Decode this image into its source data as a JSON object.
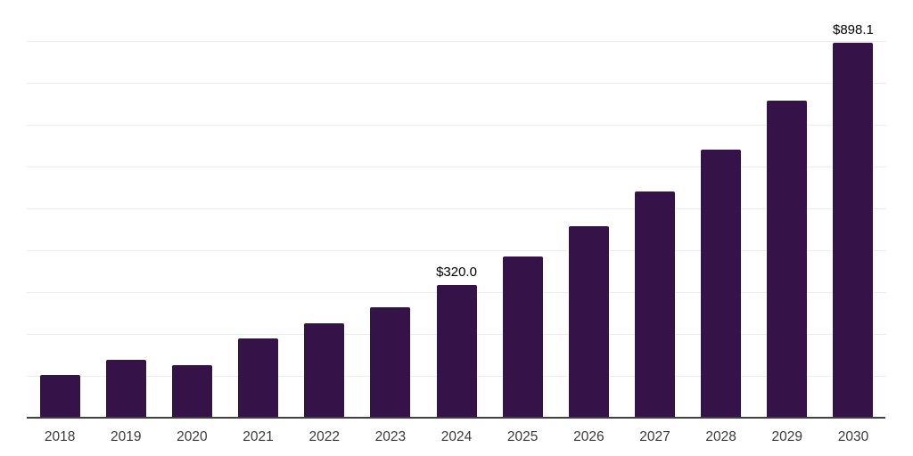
{
  "chart_data": {
    "type": "bar",
    "title": "",
    "xlabel": "",
    "ylabel": "",
    "categories": [
      "2018",
      "2019",
      "2020",
      "2021",
      "2022",
      "2023",
      "2024",
      "2025",
      "2026",
      "2027",
      "2028",
      "2029",
      "2030"
    ],
    "values": [
      104.4,
      139.8,
      128.4,
      191.5,
      228.3,
      266.6,
      320.0,
      387.2,
      459.6,
      542.6,
      642.0,
      759.0,
      898.1
    ],
    "point_labels": [
      "",
      "",
      "",
      "",
      "",
      "",
      "$320.0",
      "",
      "",
      "",
      "",
      "",
      "$898.1"
    ],
    "ylim": [
      0,
      1000
    ],
    "gridline_interval": 100,
    "grid": "horizontal",
    "legend": "none",
    "colors": {
      "bar": "#351349",
      "axis_line": "#404040",
      "gridline": "#ececec",
      "tick_label": "#3a3a3a",
      "data_label": "#000000",
      "background": "#ffffff"
    }
  }
}
